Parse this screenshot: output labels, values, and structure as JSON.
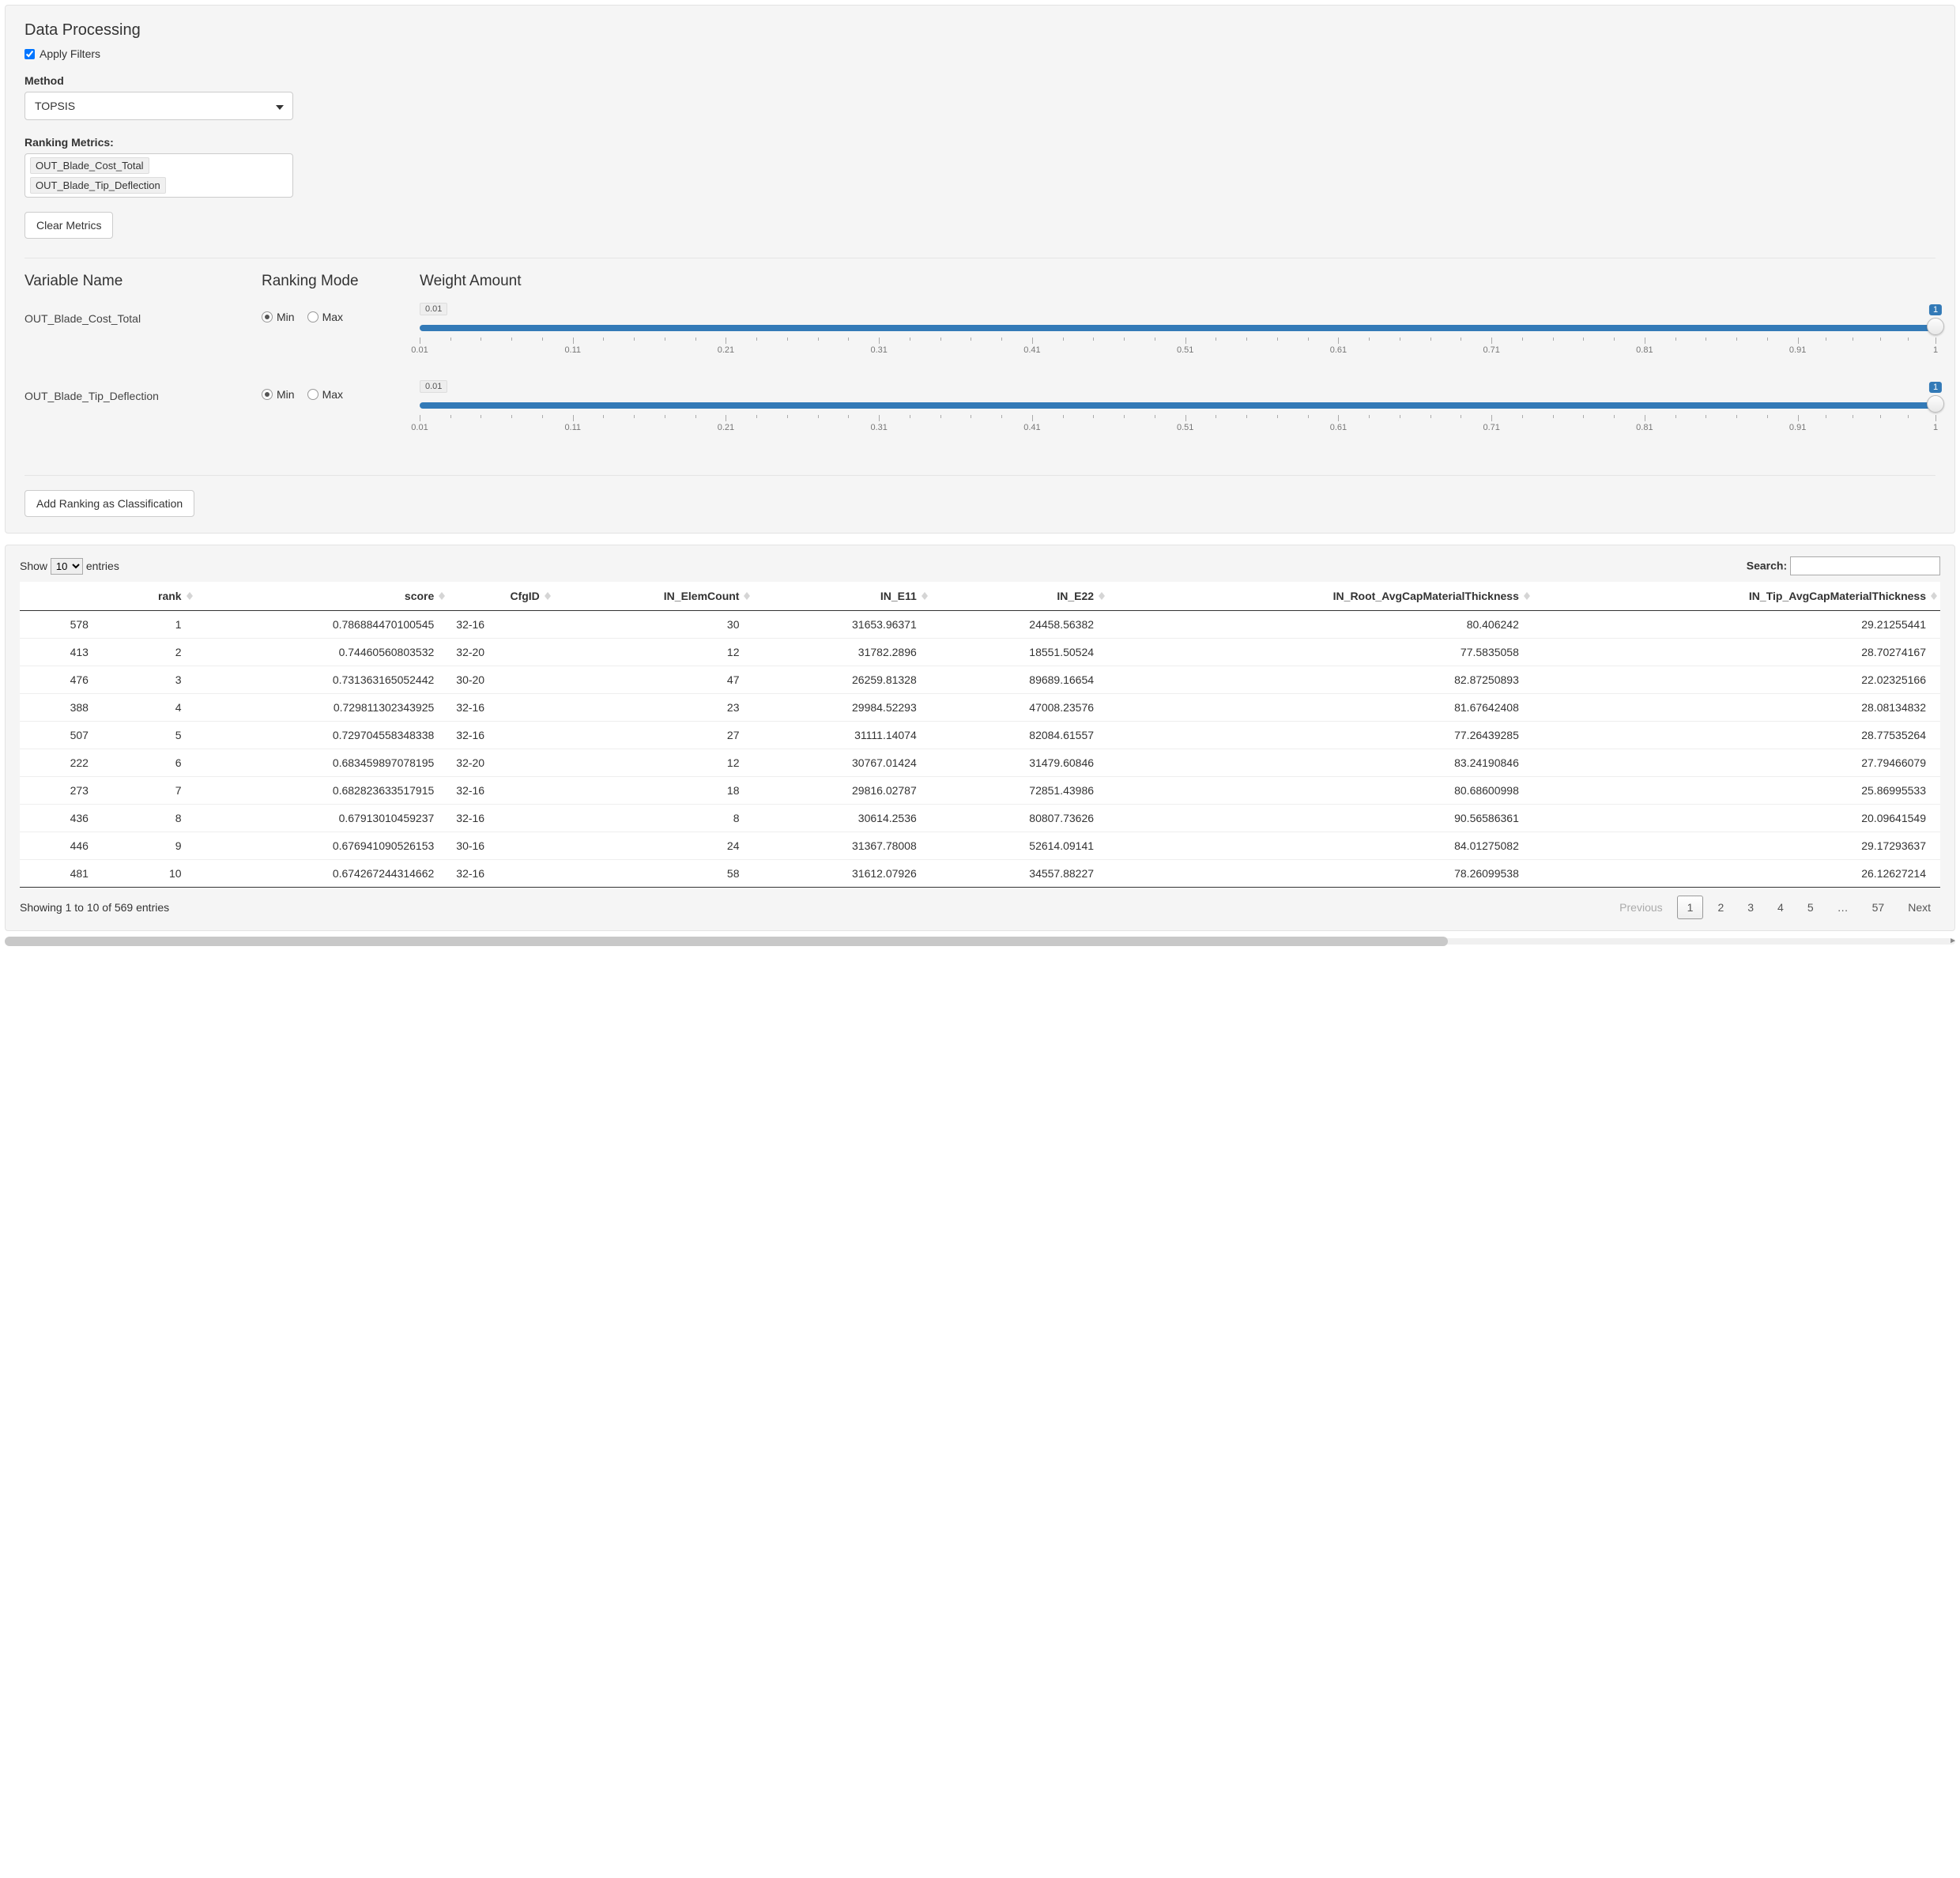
{
  "colors": {
    "panel_bg": "#f5f5f5",
    "panel_border": "#e3e3e3",
    "accent": "#337ab7",
    "text": "#333333"
  },
  "top": {
    "title": "Data Processing",
    "apply_filters_label": "Apply Filters",
    "apply_filters_checked": true,
    "method_label": "Method",
    "method_value": "TOPSIS",
    "ranking_metrics_label": "Ranking Metrics:",
    "metrics": [
      "OUT_Blade_Cost_Total",
      "OUT_Blade_Tip_Deflection"
    ],
    "clear_metrics_label": "Clear Metrics",
    "var_header": "Variable Name",
    "mode_header": "Ranking Mode",
    "weight_header": "Weight Amount",
    "rows": [
      {
        "name": "OUT_Blade_Cost_Total",
        "mode": "Min",
        "weight": 1,
        "readout": "0.01",
        "badge": "1"
      },
      {
        "name": "OUT_Blade_Tip_Deflection",
        "mode": "Min",
        "weight": 1,
        "readout": "0.01",
        "badge": "1"
      }
    ],
    "mode_min": "Min",
    "mode_max": "Max",
    "slider": {
      "min": 0.01,
      "max": 1.0,
      "major_ticks": [
        0.01,
        0.11,
        0.21,
        0.31,
        0.41,
        0.51,
        0.61,
        0.71,
        0.81,
        0.91,
        1
      ],
      "tick_labels": [
        "0.01",
        "0.11",
        "0.21",
        "0.31",
        "0.41",
        "0.51",
        "0.61",
        "0.71",
        "0.81",
        "0.91",
        "1"
      ]
    },
    "add_ranking_label": "Add Ranking as Classification"
  },
  "table": {
    "show_label_pre": "Show",
    "show_label_post": "entries",
    "page_size": "10",
    "search_label": "Search:",
    "search_value": "",
    "columns": [
      "",
      "rank",
      "score",
      "CfgID",
      "IN_ElemCount",
      "IN_E11",
      "IN_E22",
      "IN_Root_AvgCapMaterialThickness",
      "IN_Tip_AvgCapMaterialThickness"
    ],
    "rows": [
      [
        "578",
        "1",
        "0.786884470100545",
        "32-16",
        "30",
        "31653.96371",
        "24458.56382",
        "80.406242",
        "29.21255441"
      ],
      [
        "413",
        "2",
        "0.74460560803532",
        "32-20",
        "12",
        "31782.2896",
        "18551.50524",
        "77.5835058",
        "28.70274167"
      ],
      [
        "476",
        "3",
        "0.731363165052442",
        "30-20",
        "47",
        "26259.81328",
        "89689.16654",
        "82.87250893",
        "22.02325166"
      ],
      [
        "388",
        "4",
        "0.729811302343925",
        "32-16",
        "23",
        "29984.52293",
        "47008.23576",
        "81.67642408",
        "28.08134832"
      ],
      [
        "507",
        "5",
        "0.729704558348338",
        "32-16",
        "27",
        "31111.14074",
        "82084.61557",
        "77.26439285",
        "28.77535264"
      ],
      [
        "222",
        "6",
        "0.683459897078195",
        "32-20",
        "12",
        "30767.01424",
        "31479.60846",
        "83.24190846",
        "27.79466079"
      ],
      [
        "273",
        "7",
        "0.682823633517915",
        "32-16",
        "18",
        "29816.02787",
        "72851.43986",
        "80.68600998",
        "25.86995533"
      ],
      [
        "436",
        "8",
        "0.67913010459237",
        "32-16",
        "8",
        "30614.2536",
        "80807.73626",
        "90.56586361",
        "20.09641549"
      ],
      [
        "446",
        "9",
        "0.676941090526153",
        "30-16",
        "24",
        "31367.78008",
        "52614.09141",
        "84.01275082",
        "29.17293637"
      ],
      [
        "481",
        "10",
        "0.674267244314662",
        "32-16",
        "58",
        "31612.07926",
        "34557.88227",
        "78.26099538",
        "26.12627214"
      ]
    ],
    "info": "Showing 1 to 10 of 569 entries",
    "pager": {
      "prev": "Previous",
      "next": "Next",
      "pages": [
        "1",
        "2",
        "3",
        "4",
        "5",
        "…",
        "57"
      ],
      "current": "1"
    },
    "hscroll_thumb_pct": 74
  }
}
